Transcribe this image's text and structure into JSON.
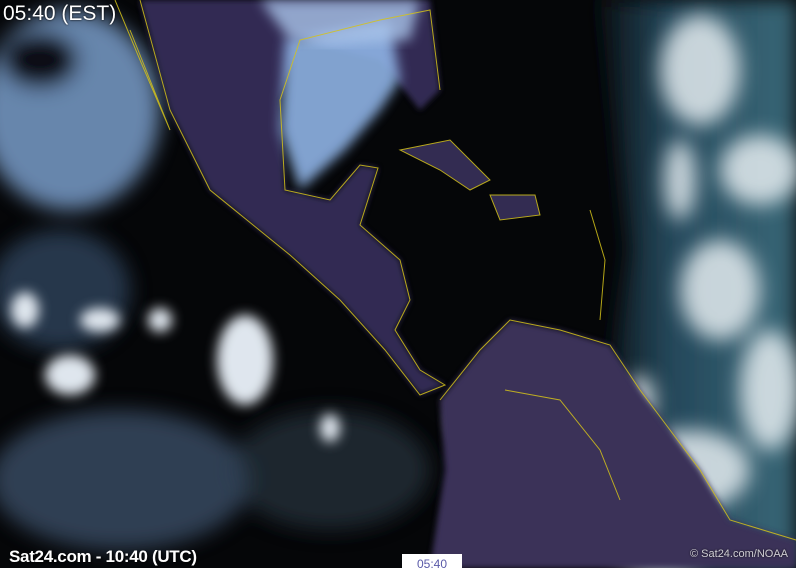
{
  "overlay": {
    "local_time": "05:40 (EST)",
    "utc_caption": "Sat24.com - 10:40 (UTC)",
    "timeline_label": "05:40",
    "credit": "© Sat24.com/NOAA"
  },
  "colors": {
    "land_night": "#3a3358",
    "borders": "#d4c21a",
    "clouds_night": "#8fb4e6",
    "ocean_day": "#2e5566",
    "clouds_day": "#e6eef2"
  }
}
